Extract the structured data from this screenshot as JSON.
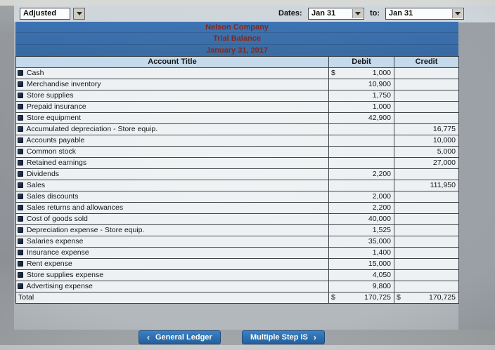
{
  "toolbar": {
    "view": {
      "value": "Adjusted"
    },
    "dates_label": "Dates:",
    "from": {
      "value": "Jan 31"
    },
    "to_label": "to:",
    "to": {
      "value": "Jan 31"
    }
  },
  "report": {
    "company": "Nelson Company",
    "title": "Trial Balance",
    "date": "January 31, 2017"
  },
  "table": {
    "columns": [
      "Account Title",
      "Debit",
      "Credit"
    ],
    "rows": [
      {
        "account": "Cash",
        "debit_symbol": "$",
        "debit": "1,000",
        "credit_symbol": "",
        "credit": ""
      },
      {
        "account": "Merchandise inventory",
        "debit": "10,900"
      },
      {
        "account": "Store supplies",
        "debit": "1,750"
      },
      {
        "account": "Prepaid insurance",
        "debit": "1,000"
      },
      {
        "account": "Store equipment",
        "debit": "42,900"
      },
      {
        "account": "Accumulated depreciation - Store equip.",
        "credit": "16,775"
      },
      {
        "account": "Accounts payable",
        "credit": "10,000"
      },
      {
        "account": "Common stock",
        "credit": "5,000"
      },
      {
        "account": "Retained earnings",
        "credit": "27,000"
      },
      {
        "account": "Dividends",
        "debit": "2,200"
      },
      {
        "account": "Sales",
        "credit": "111,950"
      },
      {
        "account": "Sales discounts",
        "debit": "2,000"
      },
      {
        "account": "Sales returns and allowances",
        "debit": "2,200"
      },
      {
        "account": "Cost of goods sold",
        "debit": "40,000"
      },
      {
        "account": "Depreciation expense - Store equip.",
        "debit": "1,525"
      },
      {
        "account": "Salaries expense",
        "debit": "35,000"
      },
      {
        "account": "Insurance expense",
        "debit": "1,400"
      },
      {
        "account": "Rent expense",
        "debit": "15,000"
      },
      {
        "account": "Store supplies expense",
        "debit": "4,050"
      },
      {
        "account": "Advertising expense",
        "debit": "9,800"
      },
      {
        "account": "Total",
        "is_total": true,
        "debit_symbol": "$",
        "debit": "170,725",
        "credit_symbol": "$",
        "credit": "170,725"
      }
    ]
  },
  "buttons": {
    "left_chevron": "‹",
    "general_ledger": "General Ledger",
    "multiple_step": "Multiple Step IS",
    "right_chevron": "›"
  },
  "colors": {
    "band_blue": "#3b72b4",
    "header_blue": "#c4d9ec",
    "title_maroon": "#7c241c",
    "button_blue": "#2e74b8"
  }
}
